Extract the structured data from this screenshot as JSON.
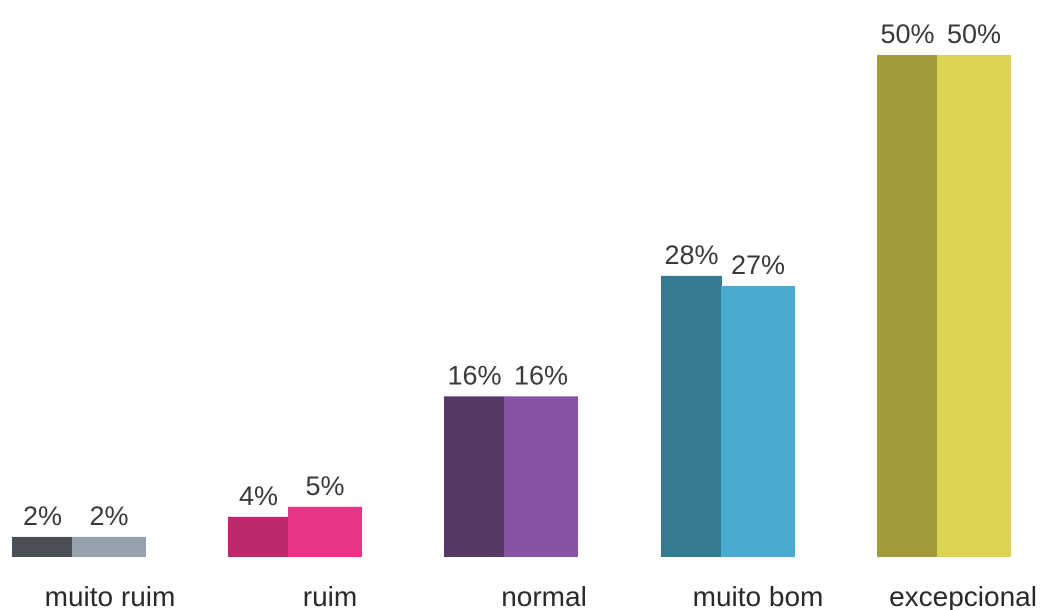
{
  "chart_data": {
    "type": "bar",
    "categories": [
      "muito ruim",
      "ruim",
      "normal",
      "muito bom",
      "excepcional"
    ],
    "series": [
      {
        "values": [
          2,
          4,
          16,
          28,
          50
        ],
        "labels": [
          "2%",
          "4%",
          "16%",
          "28%",
          "50%"
        ],
        "colors": [
          "#4a4f57",
          "#bd2a6c",
          "#563866",
          "#357a91",
          "#a09a3b"
        ]
      },
      {
        "values": [
          2,
          5,
          16,
          27,
          50
        ],
        "labels": [
          "2%",
          "5%",
          "16%",
          "27%",
          "50%"
        ],
        "colors": [
          "#98a1ae",
          "#e93586",
          "#8754a5",
          "#4aabd0",
          "#dbd353"
        ]
      }
    ],
    "ylim": [
      0,
      50
    ],
    "grid": false,
    "legend": "none"
  }
}
